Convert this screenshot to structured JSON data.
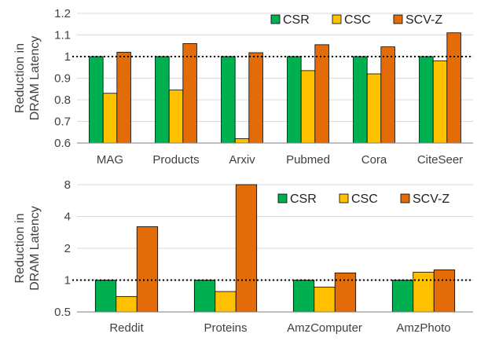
{
  "colors": {
    "CSR": "#00B050",
    "CSC": "#FFC000",
    "SCV-Z": "#E36C09",
    "edge": "#000000",
    "axis": "#7F7F7F",
    "grid": "#D9D9D9"
  },
  "chart_data": [
    {
      "type": "bar",
      "ylabel_lines": [
        "Reduction in",
        "DRAM Latency"
      ],
      "ylim": [
        0.6,
        1.2
      ],
      "yticks": [
        "0.6",
        "0.7",
        "0.8",
        "0.9",
        "1",
        "1.1",
        "1.2"
      ],
      "ytick_values": [
        0.6,
        0.7,
        0.8,
        0.9,
        1.0,
        1.1,
        1.2
      ],
      "reference_line": 1,
      "categories": [
        "MAG",
        "Products",
        "Arxiv",
        "Pubmed",
        "Cora",
        "CiteSeer"
      ],
      "series": [
        {
          "name": "CSR",
          "values": [
            1.0,
            1.0,
            1.0,
            1.0,
            1.0,
            1.0
          ]
        },
        {
          "name": "CSC",
          "values": [
            0.83,
            0.845,
            0.62,
            0.935,
            0.92,
            0.98
          ]
        },
        {
          "name": "SCV-Z",
          "values": [
            1.02,
            1.06,
            1.018,
            1.055,
            1.045,
            1.11
          ]
        }
      ],
      "legend": "top-right",
      "grid": true
    },
    {
      "type": "bar",
      "yscale": "log2",
      "ylabel_lines": [
        "Reduction in",
        "DRAM Latency"
      ],
      "ylim": [
        0.5,
        8
      ],
      "yticks": [
        "0.5",
        "1",
        "2",
        "4",
        "8"
      ],
      "ytick_values": [
        0.5,
        1,
        2,
        4,
        8
      ],
      "reference_line": 1,
      "categories": [
        "Reddit",
        "Proteins",
        "AmzComputer",
        "AmzPhoto"
      ],
      "series": [
        {
          "name": "CSR",
          "values": [
            1.0,
            1.0,
            1.0,
            1.0
          ]
        },
        {
          "name": "CSC",
          "values": [
            0.7,
            0.78,
            0.86,
            1.19
          ]
        },
        {
          "name": "SCV-Z",
          "values": [
            3.2,
            8.0,
            1.17,
            1.25
          ]
        }
      ],
      "legend": "top-right",
      "grid": true
    }
  ]
}
